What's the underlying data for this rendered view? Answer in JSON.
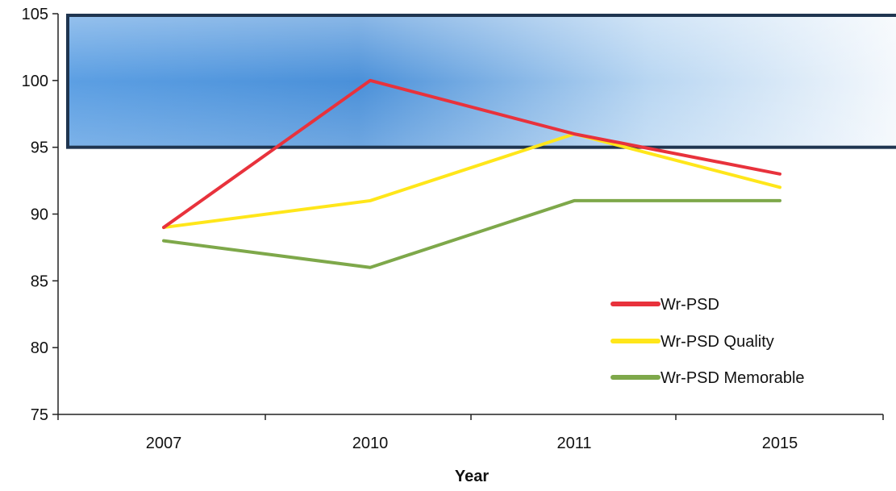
{
  "chart_data": {
    "type": "line",
    "title": "",
    "xlabel": "Year",
    "ylabel": "",
    "categories": [
      "2007",
      "2010",
      "2011",
      "2015"
    ],
    "ylim": [
      75,
      105
    ],
    "yticks": [
      75,
      80,
      85,
      90,
      95,
      100,
      105
    ],
    "grid": false,
    "legend_position": "bottom-right",
    "highlight_band": {
      "from": 95,
      "to": 105,
      "fill": "#4a90d9",
      "border": "#1f3550"
    },
    "series": [
      {
        "name": "Wr-PSD",
        "color": "#e8323c",
        "values": [
          89,
          100,
          96,
          93
        ]
      },
      {
        "name": "Wr-PSD Quality",
        "color": "#ffe61a",
        "values": [
          89,
          91,
          96,
          92
        ]
      },
      {
        "name": "Wr-PSD Memorable",
        "color": "#7ea84a",
        "values": [
          88,
          86,
          91,
          91
        ]
      }
    ]
  }
}
